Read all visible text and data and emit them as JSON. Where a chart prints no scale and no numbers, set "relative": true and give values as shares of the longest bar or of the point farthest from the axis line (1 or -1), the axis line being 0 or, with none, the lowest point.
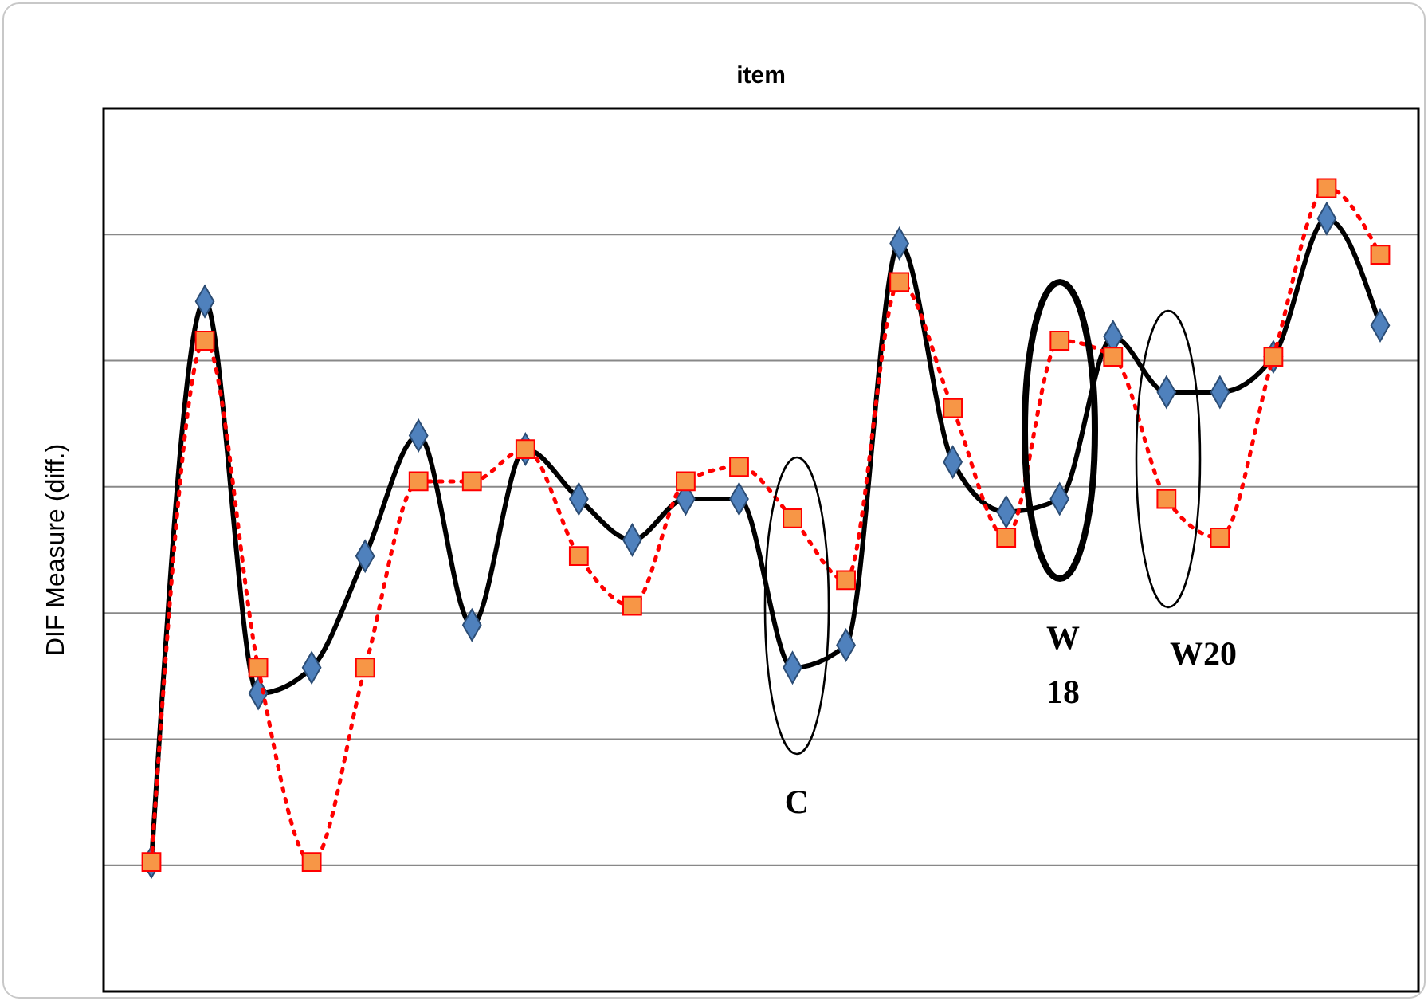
{
  "chart_data": {
    "type": "line",
    "title": "item",
    "ylabel": "DIF Measure (diff.)",
    "relative": true,
    "grid": "y",
    "categories": [
      null,
      null,
      null,
      null,
      null,
      null,
      null,
      null,
      null,
      null,
      null,
      null,
      null,
      null,
      null,
      null,
      null,
      null,
      null,
      null,
      null,
      null,
      null,
      null
    ],
    "series": [
      {
        "color": "#000000",
        "marker": "diamond",
        "line_style": "solid",
        "values": [
          0.161,
          0.859,
          0.371,
          0.403,
          0.542,
          0.692,
          0.456,
          0.675,
          0.613,
          0.562,
          0.613,
          0.613,
          0.403,
          0.431,
          0.931,
          0.659,
          0.597,
          0.613,
          0.815,
          0.746,
          0.746,
          0.79,
          0.962,
          0.829
        ]
      },
      {
        "color": "#ff0000",
        "marker": "square",
        "line_style": "dotted",
        "values": [
          0.161,
          0.81,
          0.403,
          0.161,
          0.403,
          0.635,
          0.635,
          0.675,
          0.542,
          0.48,
          0.635,
          0.653,
          0.589,
          0.512,
          0.883,
          0.726,
          0.565,
          0.81,
          0.79,
          0.613,
          0.565,
          0.79,
          1,
          0.917
        ]
      }
    ],
    "annotations": [
      "C",
      "W\n18",
      "W20"
    ]
  }
}
